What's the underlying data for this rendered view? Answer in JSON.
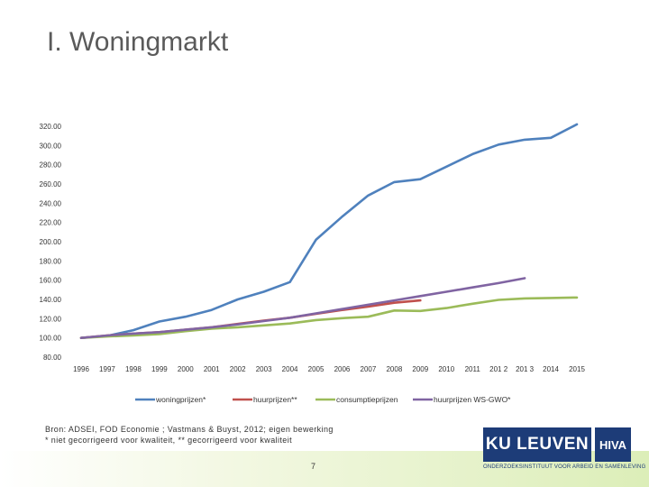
{
  "slide": {
    "title": "I. Woningmarkt",
    "source_line1": "Bron: ADSEI, FOD Economie ; Vastmans & Buyst, 2012; eigen bewerking",
    "source_line2": "* niet gecorrigeerd voor kwaliteit, ** gecorrigeerd voor kwaliteit",
    "page_number": "7",
    "logo_ku": "KU LEUVEN",
    "logo_hiva": "HIVA",
    "logo_subtitle": "ONDERZOEKSINSTITUUT VOOR ARBEID EN SAMENLEVING"
  },
  "chart_data": {
    "type": "line",
    "title": "",
    "xlabel": "",
    "ylabel": "",
    "ylim": [
      80,
      320
    ],
    "yticks": [
      "80.00",
      "100.00",
      "120.00",
      "140.00",
      "160.00",
      "180.00",
      "200.00",
      "220.00",
      "240.00",
      "260.00",
      "280.00",
      "300.00",
      "320.00"
    ],
    "grid": false,
    "legend_position": "bottom",
    "x": [
      "1996",
      "1997",
      "1998",
      "1999",
      "2000",
      "2001",
      "2002",
      "2003",
      "2004",
      "2005",
      "2006",
      "2007",
      "2008",
      "2009",
      "2010",
      "2011",
      "201 2",
      "201 3",
      "2014",
      "2015"
    ],
    "series": [
      {
        "name": "woningprijzen*",
        "color": "#4f81bd",
        "values": [
          100,
          102,
          108,
          117,
          122,
          129,
          140,
          148,
          158,
          202,
          226,
          248,
          262,
          265,
          278,
          291,
          301,
          306,
          308,
          322
        ]
      },
      {
        "name": "huurprijzen**",
        "color": "#c0504d",
        "values": [
          100,
          102.5,
          104.5,
          106,
          108.5,
          111,
          114.5,
          118,
          121,
          125,
          129,
          132.5,
          136.5,
          139,
          null,
          null,
          null,
          null,
          null,
          null
        ]
      },
      {
        "name": "consumptieprijzen",
        "color": "#9bbb59",
        "values": [
          100,
          101.5,
          102.5,
          104,
          107,
          109.5,
          111,
          113,
          115,
          118.5,
          120.5,
          122,
          128.5,
          128,
          131,
          135.5,
          139.5,
          141,
          141.5,
          142
        ]
      },
      {
        "name": "huurprijzen WS-GWO*",
        "color": "#8064a2",
        "values": [
          100,
          102.5,
          104.5,
          106,
          108.5,
          111,
          114,
          117.5,
          121,
          125.5,
          130,
          134.5,
          139,
          143.5,
          148,
          152.5,
          157,
          162,
          null,
          null
        ]
      }
    ]
  }
}
